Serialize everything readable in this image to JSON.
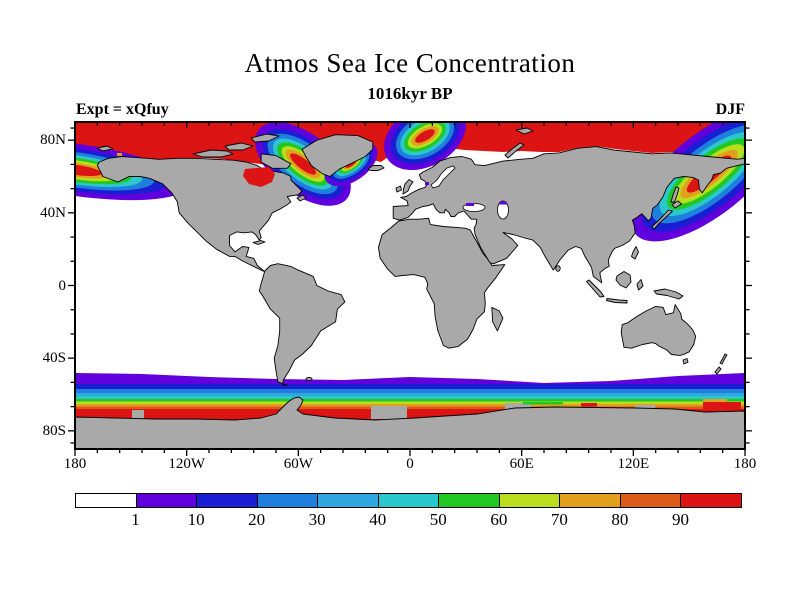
{
  "header": {
    "title": "Atmos Sea Ice Concentration",
    "subtitle": "1016kyr BP",
    "experiment_label": "Expt = xQfuy",
    "season": "DJF"
  },
  "axes": {
    "x": {
      "range": [
        -180,
        180
      ],
      "minor_step_deg": 12,
      "ticks": [
        {
          "label": "180",
          "value": -180
        },
        {
          "label": "120W",
          "value": -120
        },
        {
          "label": "60W",
          "value": -60
        },
        {
          "label": "0",
          "value": 0
        },
        {
          "label": "60E",
          "value": 60
        },
        {
          "label": "120E",
          "value": 120
        },
        {
          "label": "180",
          "value": 180
        }
      ]
    },
    "y": {
      "range": [
        90,
        -90
      ],
      "minor_step_deg": 13.333,
      "ticks": [
        {
          "label": "80N",
          "value": 80
        },
        {
          "label": "40N",
          "value": 40
        },
        {
          "label": "0",
          "value": 0
        },
        {
          "label": "40S",
          "value": -40
        },
        {
          "label": "80S",
          "value": -80
        }
      ]
    }
  },
  "colorbar": {
    "boundary_labels": [
      "1",
      "10",
      "20",
      "30",
      "40",
      "50",
      "60",
      "70",
      "80",
      "90"
    ],
    "colors": [
      "#ffffff",
      "#6000dc",
      "#1a1ed2",
      "#1e80dc",
      "#2ea8de",
      "#2ac8cc",
      "#22c822",
      "#bcdc1e",
      "#e0a01e",
      "#dc5a1a",
      "#dc1414"
    ]
  },
  "map_colors": {
    "land": "#a9a9a9",
    "ocean": "#ffffff",
    "coastline": "#000000",
    "frame": "#000000"
  },
  "chart_data": {
    "type": "heatmap",
    "title": "Atmos Sea Ice Concentration",
    "subtitle": "1016kyr BP",
    "experiment": "xQfuy",
    "season": "DJF",
    "projection": "equirectangular",
    "lon_range": [
      -180,
      180
    ],
    "lat_range": [
      -90,
      90
    ],
    "contour_levels": [
      1,
      10,
      20,
      30,
      40,
      50,
      60,
      70,
      80,
      90
    ],
    "palette": [
      "#ffffff",
      "#6000dc",
      "#1a1ed2",
      "#1e80dc",
      "#2ea8de",
      "#2ac8cc",
      "#22c822",
      "#bcdc1e",
      "#e0a01e",
      "#dc5a1a",
      "#dc1414"
    ],
    "land_color": "#a9a9a9",
    "legend_position": "bottom",
    "grid": false,
    "features": [
      "Arctic Ocean fully ice covered (>90) shown red across top of map",
      "Hudson Bay ice covered (>90, red patch)",
      "Marginal ice zone gradients (90 down to 1) in Bering Sea, Labrador Sea / SE Greenland, Denmark Strait, Greenland-Norwegian Sea, Sea of Okhotsk / NW Pacific",
      "Antarctic circumpolar sea-ice band from about 55S to the coast, concentration increasing poleward from 1 (purple) to >90 (red)",
      "Small low-concentration (1-10) patches in Black Sea, Caspian Sea and Skagerrak",
      "Open ocean (white) below concentration 1"
    ]
  }
}
